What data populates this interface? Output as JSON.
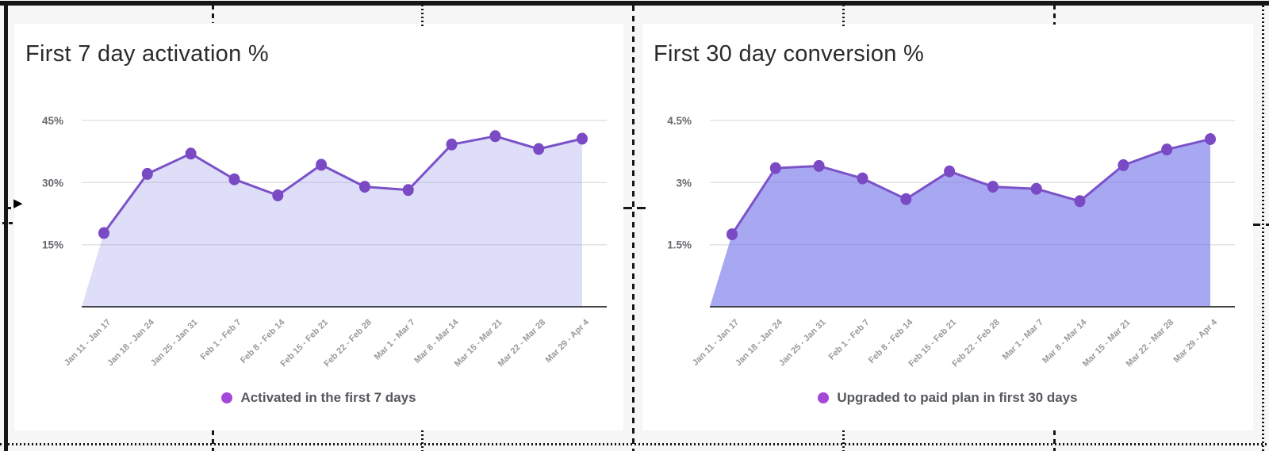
{
  "icons": {
    "cursor_triangle": "▶"
  },
  "chart_data": [
    {
      "type": "area",
      "title": "First 7 day activation %",
      "legend": "Activated in the first 7 days",
      "legend_position": "bottom",
      "grid": true,
      "xlabel": "",
      "ylabel": "",
      "ylim": [
        0,
        50
      ],
      "categories": [
        "Jan 11 - Jan 17",
        "Jan 18 - Jan 24",
        "Jan 25 - Jan 31",
        "Feb 1 - Feb 7",
        "Feb 8 - Feb 14",
        "Feb 15 - Feb 21",
        "Feb 22 - Feb 28",
        "Mar 1 - Mar 7",
        "Mar 8 - Mar 14",
        "Mar 15 - Mar 21",
        "Mar 22 - Mar 28",
        "Mar 29 - Apr 4"
      ],
      "values": [
        17.8,
        32.1,
        37.0,
        30.8,
        26.9,
        34.3,
        29.0,
        28.2,
        39.2,
        41.2,
        38.1,
        40.6
      ],
      "y_ticks": [
        {
          "label": "15%",
          "value": 15
        },
        {
          "label": "30%",
          "value": 30
        },
        {
          "label": "45%",
          "value": 45
        }
      ],
      "colors": {
        "line": "#7b52c8",
        "dot": "#7a49c4",
        "fill": "rgba(110,104,228,0.22)",
        "legend_dot": "#a348d8"
      }
    },
    {
      "type": "area",
      "title": "First 30 day conversion %",
      "legend": "Upgraded to paid plan in first 30 days",
      "legend_position": "bottom",
      "grid": true,
      "xlabel": "",
      "ylabel": "",
      "ylim": [
        0,
        5
      ],
      "categories": [
        "Jan 11 - Jan 17",
        "Jan 18 - Jan 24",
        "Jan 25 - Jan 31",
        "Feb 1 - Feb 7",
        "Feb 8 - Feb 14",
        "Feb 15 - Feb 21",
        "Feb 22 - Feb 28",
        "Mar 1 - Mar 7",
        "Mar 8 - Mar 14",
        "Mar 15 - Mar 21",
        "Mar 22 - Mar 28",
        "Mar 29 - Apr 4"
      ],
      "values": [
        1.75,
        3.35,
        3.4,
        3.1,
        2.6,
        3.27,
        2.9,
        2.85,
        2.55,
        3.42,
        3.8,
        4.05
      ],
      "y_ticks": [
        {
          "label": "1.5%",
          "value": 1.5
        },
        {
          "label": "3%",
          "value": 3
        },
        {
          "label": "4.5%",
          "value": 4.5
        }
      ],
      "colors": {
        "line": "#7b52c8",
        "dot": "#7a49c4",
        "fill": "rgba(110,110,233,0.6)",
        "legend_dot": "#a348d8"
      }
    }
  ]
}
